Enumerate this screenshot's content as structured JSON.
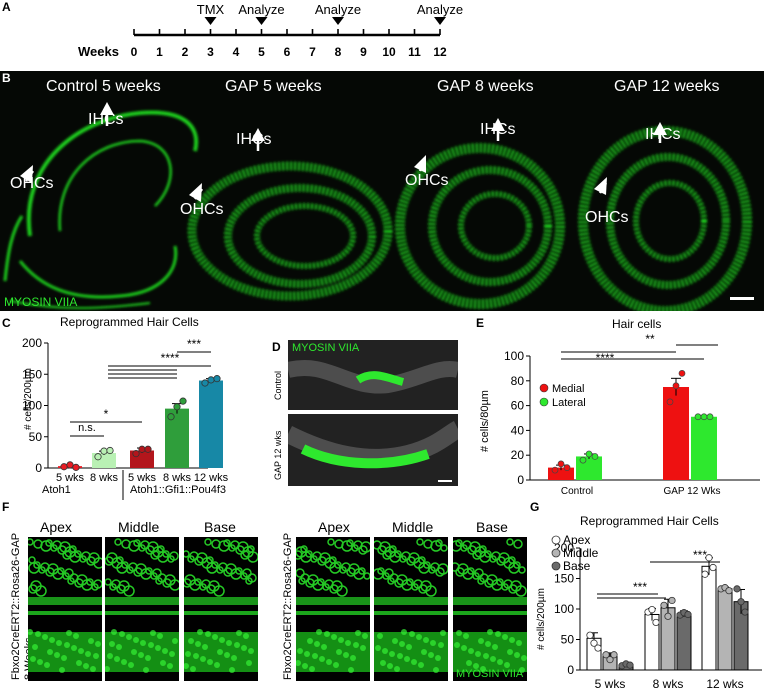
{
  "panel_labels": {
    "A": "A",
    "B": "B",
    "C": "C",
    "D": "D",
    "E": "E"
  },
  "timeline": {
    "weeks_label": "Weeks",
    "ticks": [
      "0",
      "1",
      "2",
      "3",
      "4",
      "5",
      "6",
      "7",
      "8",
      "9",
      "10",
      "11",
      "12"
    ],
    "events": [
      {
        "label": "TMX",
        "week": 3
      },
      {
        "label": "Analyze",
        "week": 5
      },
      {
        "label": "Analyze",
        "week": 8
      },
      {
        "label": "Analyze",
        "week": 12
      }
    ]
  },
  "panel_b": {
    "titles": [
      "Control 5 weeks",
      "GAP 5 weeks",
      "GAP 8 weeks",
      "GAP 12 weeks"
    ],
    "arrow_labels": {
      "ihc": "IHCs",
      "ohc": "OHCs"
    },
    "stain": "MYOSIN VIIA"
  },
  "panel_d": {
    "stain": "MYOSIN VIIA",
    "row_labels": [
      "Control",
      "GAP 12 wks"
    ]
  },
  "panel_f": {
    "columns": [
      "Apex",
      "Middle",
      "Base"
    ],
    "left_label": "Fbxo2CreERT2::Rosa26-GAP 8 Weeks",
    "right_label": "Fbxo2CreERT2::Rosa26-GAP 12 Weeks",
    "stain": "MYOSIN VIIA"
  },
  "colors": {
    "fluor": "#22dd22",
    "bg": "#050805"
  },
  "chart_data": [
    {
      "id": "C",
      "type": "bar",
      "title": "Reprogrammed Hair Cells",
      "ylabel": "# cells/200µm",
      "ylim": [
        0,
        200
      ],
      "yticks": [
        0,
        50,
        100,
        150,
        200
      ],
      "categories": [
        "5 wks",
        "8 wks",
        "5 wks",
        "8 wks",
        "12 wks"
      ],
      "values": [
        3,
        24,
        28,
        95,
        140
      ],
      "errors": [
        1,
        3,
        4,
        8,
        3
      ],
      "points": [
        [
          2,
          5,
          1
        ],
        [
          18,
          27,
          28
        ],
        [
          23,
          30,
          30
        ],
        [
          82,
          98,
          107
        ],
        [
          136,
          141,
          143
        ]
      ],
      "colors": [
        "#e91c24",
        "#b9f1b4",
        "#b3161c",
        "#2f9e3b",
        "#1788a6"
      ],
      "group_labels": [
        "Atoh1",
        "Atoh1::Gfi1::Pou4f3"
      ],
      "significance": [
        "n.s.",
        "*",
        "****",
        "***"
      ]
    },
    {
      "id": "E",
      "type": "bar",
      "title": "Hair cells",
      "ylabel": "# cells/80µm",
      "ylim": [
        0,
        100
      ],
      "yticks": [
        0,
        20,
        40,
        60,
        80,
        100
      ],
      "categories": [
        "Control",
        "GAP 12 Wks"
      ],
      "series": [
        {
          "name": "Medial",
          "values": [
            10,
            75
          ],
          "errors": [
            2,
            7
          ],
          "points": [
            [
              8,
              13,
              10
            ],
            [
              63,
              76,
              86
            ]
          ],
          "color": "#ee1111"
        },
        {
          "name": "Lateral",
          "values": [
            19,
            51
          ],
          "errors": [
            2,
            1
          ],
          "points": [
            [
              16,
              21,
              19
            ],
            [
              51,
              51,
              51
            ]
          ],
          "color": "#2ee82e"
        }
      ],
      "significance": [
        "****",
        "**"
      ]
    },
    {
      "id": "G",
      "type": "bar",
      "title": "Reprogrammed Hair Cells",
      "ylabel": "# cells/200µm",
      "ylim": [
        0,
        200
      ],
      "yticks": [
        0,
        50,
        100,
        150,
        200
      ],
      "categories": [
        "5 wks",
        "8 wks",
        "12 wks"
      ],
      "series": [
        {
          "name": "Apex",
          "values": [
            52,
            91,
            170
          ],
          "errors": [
            9,
            10,
            14
          ],
          "points": [
            [
              57,
              44,
              36
            ],
            [
              95,
              99,
              78
            ],
            [
              157,
              184,
              168
            ]
          ],
          "color": "#ffffff"
        },
        {
          "name": "Middle",
          "values": [
            22,
            102,
            133
          ],
          "errors": [
            6,
            14,
            3
          ],
          "points": [
            [
              25,
              17,
              25
            ],
            [
              106,
              88,
              114
            ],
            [
              133,
              135,
              130
            ]
          ],
          "color": "#b4b4b4"
        },
        {
          "name": "Base",
          "values": [
            8,
            92,
            112
          ],
          "errors": [
            3,
            5,
            20
          ],
          "points": [
            [
              7,
              10,
              8
            ],
            [
              90,
              94,
              91
            ],
            [
              133,
              112,
              95
            ]
          ],
          "color": "#6a6a6a"
        }
      ],
      "significance": [
        "***",
        "***"
      ]
    }
  ]
}
